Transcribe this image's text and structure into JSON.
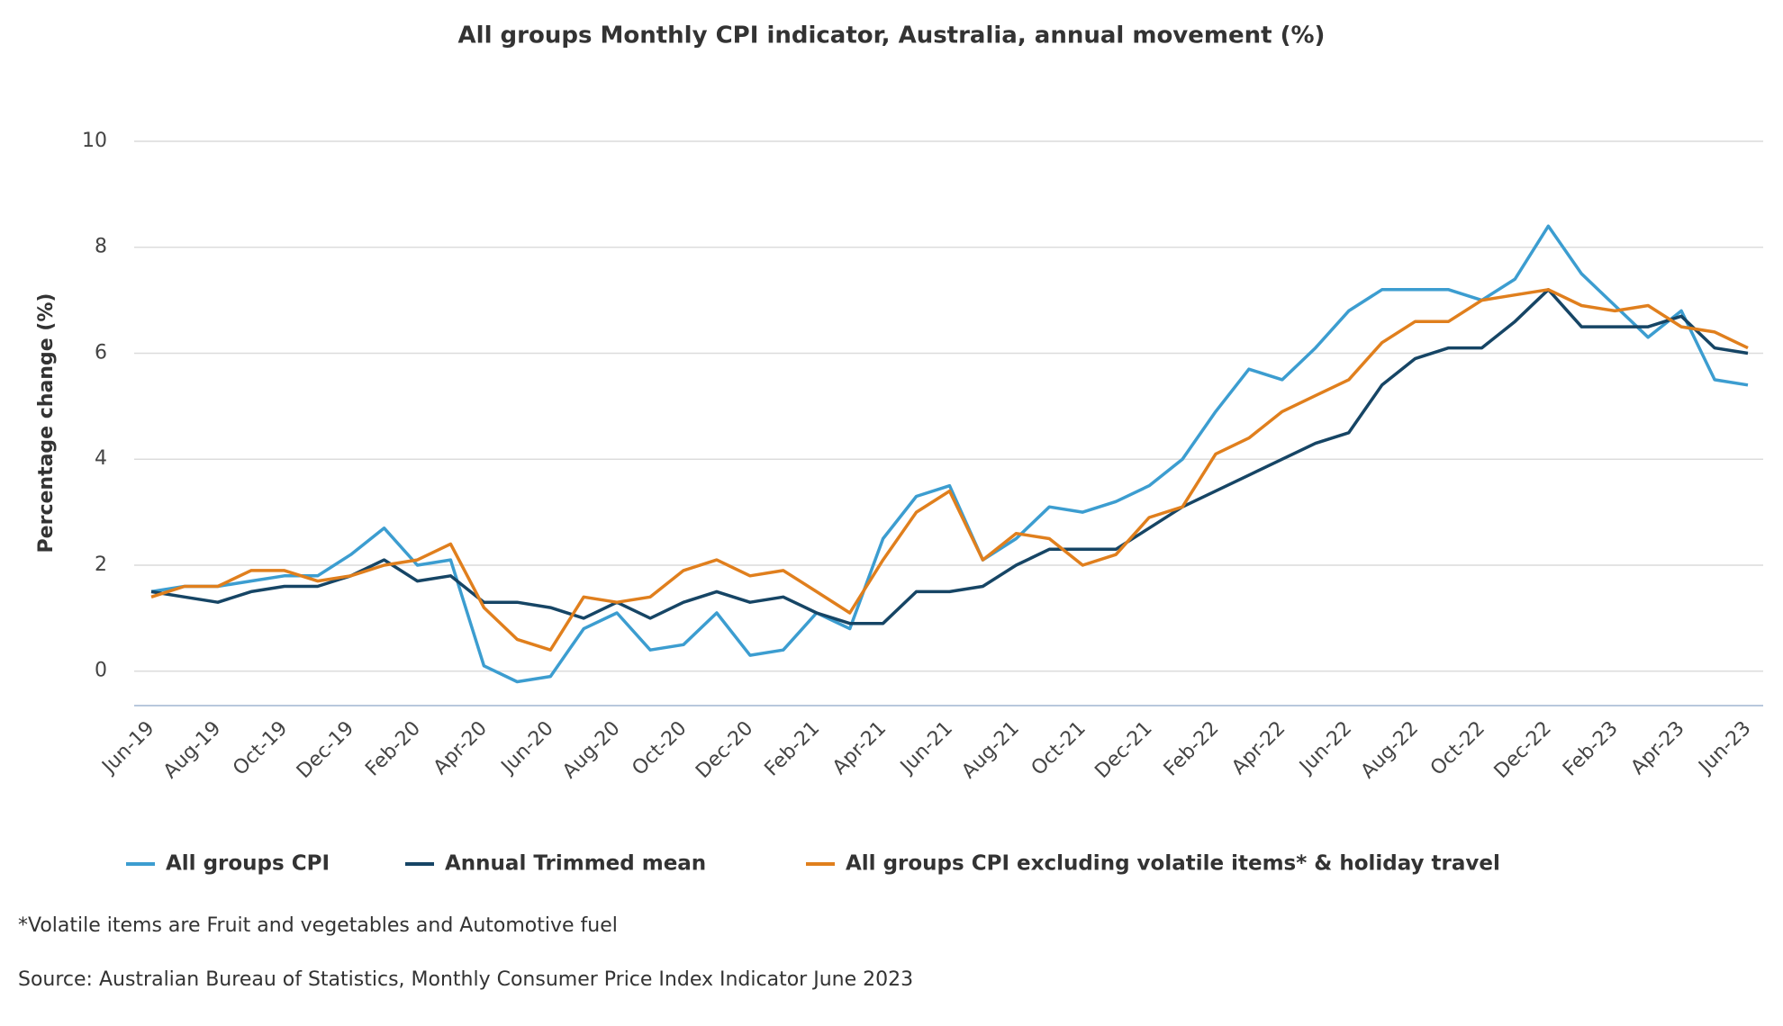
{
  "chart_data": {
    "type": "line",
    "title": "All groups Monthly CPI indicator, Australia, annual movement (%)",
    "y_label": "Percentage change (%)",
    "footnote": "*Volatile items are Fruit and vegetables and Automotive fuel",
    "source": "Source: Australian Bureau of Statistics, Monthly Consumer Price Index Indicator June 2023",
    "categories": [
      "Jun-19",
      null,
      "Aug-19",
      null,
      "Oct-19",
      null,
      "Dec-19",
      null,
      "Feb-20",
      null,
      "Apr-20",
      null,
      "Jun-20",
      null,
      "Aug-20",
      null,
      "Oct-20",
      null,
      "Dec-20",
      null,
      "Feb-21",
      null,
      "Apr-21",
      null,
      "Jun-21",
      null,
      "Aug-21",
      null,
      "Oct-21",
      null,
      "Dec-21",
      null,
      "Feb-22",
      null,
      "Apr-22",
      null,
      "Jun-22",
      null,
      "Aug-22",
      null,
      "Oct-22",
      null,
      "Dec-22",
      null,
      "Feb-23",
      null,
      "Apr-23",
      null,
      "Jun-23"
    ],
    "series": [
      {
        "name": "All groups CPI",
        "color": "#3c9dd0",
        "values": [
          1.5,
          1.6,
          1.6,
          1.7,
          1.8,
          1.8,
          2.2,
          2.7,
          2.0,
          2.1,
          0.1,
          -0.2,
          -0.1,
          0.8,
          1.1,
          0.4,
          0.5,
          1.1,
          0.3,
          0.4,
          1.1,
          0.8,
          2.5,
          3.3,
          3.5,
          2.1,
          2.5,
          3.1,
          3.0,
          3.2,
          3.5,
          4.0,
          4.9,
          5.7,
          5.5,
          6.1,
          6.8,
          7.2,
          7.2,
          7.2,
          7.0,
          7.4,
          8.4,
          7.5,
          6.9,
          6.3,
          6.8,
          5.5,
          5.4
        ]
      },
      {
        "name": "Annual Trimmed mean",
        "color": "#164565",
        "values": [
          1.5,
          1.4,
          1.3,
          1.5,
          1.6,
          1.6,
          1.8,
          2.1,
          1.7,
          1.8,
          1.3,
          1.3,
          1.2,
          1.0,
          1.3,
          1.0,
          1.3,
          1.5,
          1.3,
          1.4,
          1.1,
          0.9,
          0.9,
          1.5,
          1.5,
          1.6,
          2.0,
          2.3,
          2.3,
          2.3,
          2.7,
          3.1,
          3.4,
          3.7,
          4.0,
          4.3,
          4.5,
          5.4,
          5.9,
          6.1,
          6.1,
          6.6,
          7.2,
          6.5,
          6.5,
          6.5,
          6.7,
          6.1,
          6.0
        ]
      },
      {
        "name": "All groups CPI excluding volatile items* & holiday travel",
        "color": "#e07f1d",
        "values": [
          1.4,
          1.6,
          1.6,
          1.9,
          1.9,
          1.7,
          1.8,
          2.0,
          2.1,
          2.4,
          1.2,
          0.6,
          0.4,
          1.4,
          1.3,
          1.4,
          1.9,
          2.1,
          1.8,
          1.9,
          1.5,
          1.1,
          2.1,
          3.0,
          3.4,
          2.1,
          2.6,
          2.5,
          2.0,
          2.2,
          2.9,
          3.1,
          4.1,
          4.4,
          4.9,
          5.2,
          5.5,
          6.2,
          6.6,
          6.6,
          7.0,
          7.1,
          7.2,
          6.9,
          6.8,
          6.9,
          6.5,
          6.4,
          6.1
        ]
      }
    ],
    "ylim": [
      -0.65,
      10
    ],
    "yticks": [
      0,
      2,
      4,
      6,
      8,
      10
    ],
    "grid": true
  }
}
